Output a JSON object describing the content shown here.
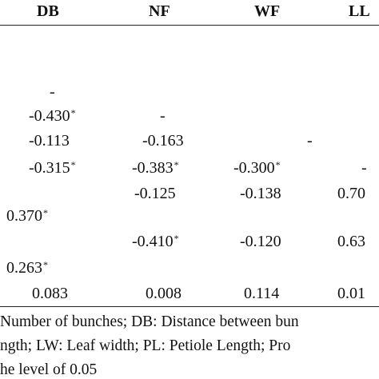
{
  "header": {
    "columns": [
      "DB",
      "NF",
      "WF",
      "LL"
    ]
  },
  "table": {
    "rows": [
      [
        {
          "text": "-"
        },
        null,
        null,
        null
      ],
      [
        {
          "text": "-0.430",
          "mark": "*"
        },
        {
          "text": "-"
        },
        null,
        null
      ],
      [
        {
          "text": "-0.113"
        },
        {
          "text": "-0.163"
        },
        {
          "text": "-"
        },
        null
      ],
      [
        {
          "text": "-0.315",
          "mark": "*"
        },
        {
          "text": "-0.383",
          "mark": "*"
        },
        {
          "text": "-0.300",
          "mark": "*"
        },
        {
          "text": "-"
        }
      ],
      [
        null,
        {
          "text": "-0.125"
        },
        {
          "text": "-0.138"
        },
        {
          "text": "0.70"
        }
      ],
      [
        {
          "text": "0.370",
          "mark": "*"
        },
        null,
        null,
        null
      ],
      [
        null,
        {
          "text": "-0.410",
          "mark": "*"
        },
        {
          "text": "-0.120"
        },
        {
          "text": "0.63"
        }
      ],
      [
        {
          "text": "0.263",
          "mark": "*"
        },
        null,
        null,
        null
      ],
      [
        {
          "text": "0.083"
        },
        {
          "text": "0.008"
        },
        {
          "text": "0.114"
        },
        {
          "text": "0.01"
        }
      ]
    ]
  },
  "notes": [
    "Number of bunches; DB: Distance between bun",
    "ngth; LW: Leaf width; PL: Petiole Length; Pro",
    "he level of  0.05"
  ]
}
